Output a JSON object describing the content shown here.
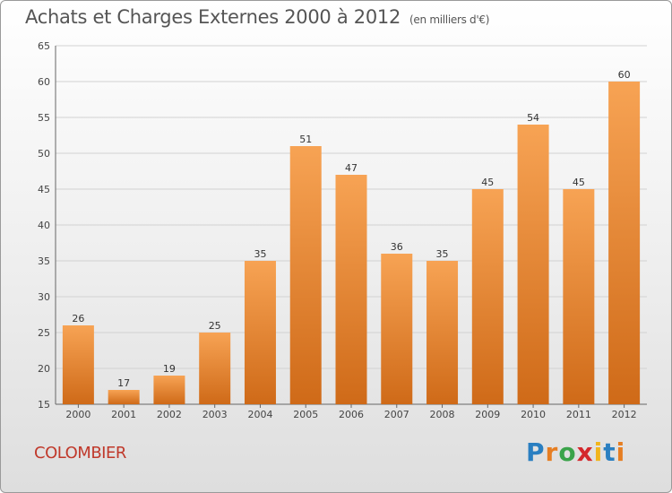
{
  "header": {
    "title": "Achats et Charges Externes 2000 à 2012",
    "subtitle": "(en milliers d'€)"
  },
  "footer": {
    "commune": "COLOMBIER",
    "logo_letters": [
      "P",
      "r",
      "o",
      "x",
      "i",
      "t",
      "i"
    ]
  },
  "colors": {
    "bar_light": "#f7a354",
    "bar_dark": "#cf6a18",
    "title_text": "#555555",
    "commune_text": "#c0392b"
  },
  "chart_data": {
    "type": "bar",
    "title": "Achats et Charges Externes 2000 à 2012",
    "subtitle": "(en milliers d'€)",
    "categories": [
      "2000",
      "2001",
      "2002",
      "2003",
      "2004",
      "2005",
      "2006",
      "2007",
      "2008",
      "2009",
      "2010",
      "2011",
      "2012"
    ],
    "values": [
      26,
      17,
      19,
      25,
      35,
      51,
      47,
      36,
      35,
      45,
      54,
      45,
      60
    ],
    "ylim": [
      15,
      65
    ],
    "yticks": [
      15,
      20,
      25,
      30,
      35,
      40,
      45,
      50,
      55,
      60,
      65
    ],
    "grid": true,
    "legend": "none"
  }
}
